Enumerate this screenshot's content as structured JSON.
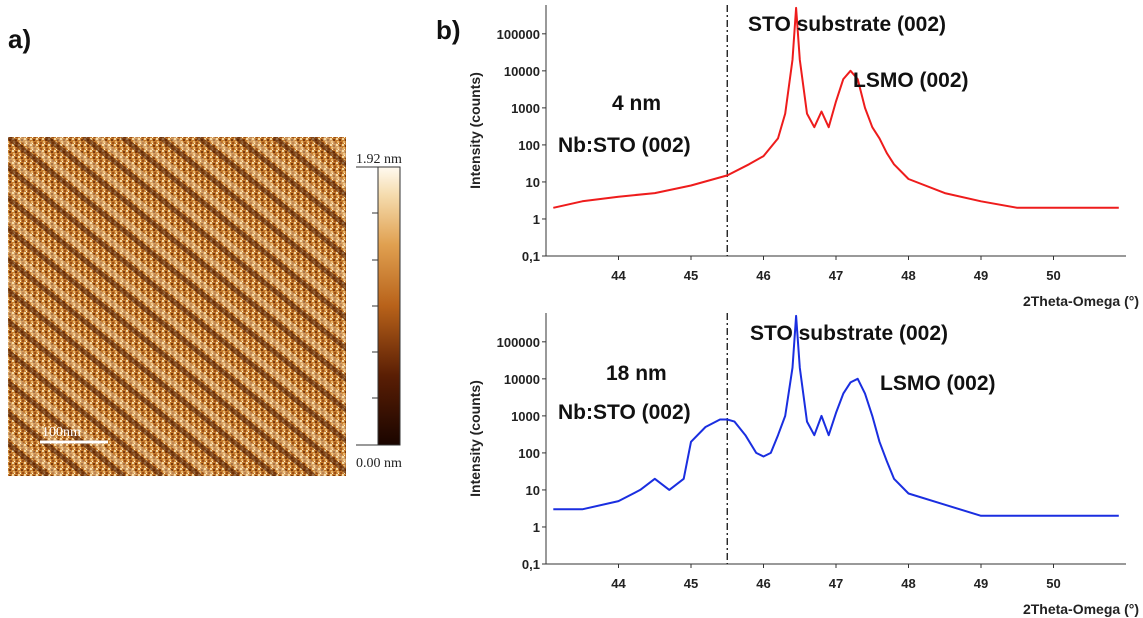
{
  "panels": {
    "a_label": "a)",
    "b_label": "b)"
  },
  "afm": {
    "colorbar_max": "1.92 nm",
    "colorbar_min": "0.00 nm",
    "scale_bar": "100nm",
    "colors": {
      "dark": "#2a0b02",
      "mid": "#b8621a",
      "light": "#fff7e6"
    }
  },
  "chart_data": [
    {
      "type": "line",
      "y_scale": "log",
      "ylabel": "Intensity (counts)",
      "xlabel": "2Theta-Omega (°)",
      "xlim": [
        43.0,
        51.0
      ],
      "ylim": [
        0.1,
        600000
      ],
      "x_ticks": [
        "44",
        "45",
        "46",
        "47",
        "48",
        "49",
        "50"
      ],
      "y_ticks": [
        "0,1",
        "1",
        "10",
        "100",
        "1000",
        "10000",
        "100000"
      ],
      "reference_line_x": 45.5,
      "color": "#ee1c1c",
      "thickness_label": "4 nm",
      "annotations": {
        "substrate": "STO substrate (002)",
        "film": "LSMO (002)",
        "electrode": "Nb:STO (002)"
      },
      "series": [
        {
          "x": [
            43.1,
            43.5,
            44.0,
            44.5,
            45.0,
            45.5,
            45.8,
            46.0,
            46.2,
            46.3,
            46.4,
            46.45,
            46.5,
            46.6,
            46.7,
            46.8,
            46.9,
            47.0,
            47.1,
            47.2,
            47.3,
            47.4,
            47.5,
            47.6,
            47.7,
            47.8,
            48.0,
            48.5,
            49.0,
            49.5,
            50.0,
            50.5,
            50.9
          ],
          "values": [
            2,
            3,
            4,
            5,
            8,
            15,
            30,
            50,
            150,
            700,
            20000,
            500000,
            20000,
            700,
            300,
            800,
            300,
            1500,
            6000,
            10000,
            6000,
            1000,
            300,
            150,
            60,
            30,
            12,
            5,
            3,
            2,
            2,
            2,
            2
          ]
        }
      ]
    },
    {
      "type": "line",
      "y_scale": "log",
      "ylabel": "Intensity (counts)",
      "xlabel": "2Theta-Omega (°)",
      "xlim": [
        43.0,
        51.0
      ],
      "ylim": [
        0.1,
        600000
      ],
      "x_ticks": [
        "44",
        "45",
        "46",
        "47",
        "48",
        "49",
        "50"
      ],
      "y_ticks": [
        "0,1",
        "1",
        "10",
        "100",
        "1000",
        "10000",
        "100000"
      ],
      "reference_line_x": 45.5,
      "color": "#1a2ee0",
      "thickness_label": "18 nm",
      "annotations": {
        "substrate": "STO substrate (002)",
        "film": "LSMO (002)",
        "electrode": "Nb:STO (002)"
      },
      "series": [
        {
          "x": [
            43.1,
            43.5,
            44.0,
            44.3,
            44.5,
            44.7,
            44.9,
            45.0,
            45.2,
            45.4,
            45.5,
            45.6,
            45.75,
            45.9,
            46.0,
            46.1,
            46.2,
            46.3,
            46.4,
            46.45,
            46.5,
            46.6,
            46.7,
            46.8,
            46.9,
            47.0,
            47.1,
            47.2,
            47.3,
            47.4,
            47.5,
            47.6,
            47.7,
            47.8,
            48.0,
            48.5,
            49.0,
            49.5,
            50.0,
            50.5,
            50.9
          ],
          "values": [
            3,
            3,
            5,
            10,
            20,
            10,
            20,
            200,
            500,
            800,
            800,
            700,
            300,
            100,
            80,
            100,
            300,
            1000,
            20000,
            500000,
            20000,
            700,
            300,
            1000,
            300,
            1200,
            4000,
            8000,
            10000,
            4000,
            1000,
            200,
            60,
            20,
            8,
            4,
            2,
            2,
            2,
            2,
            2
          ]
        }
      ]
    }
  ]
}
